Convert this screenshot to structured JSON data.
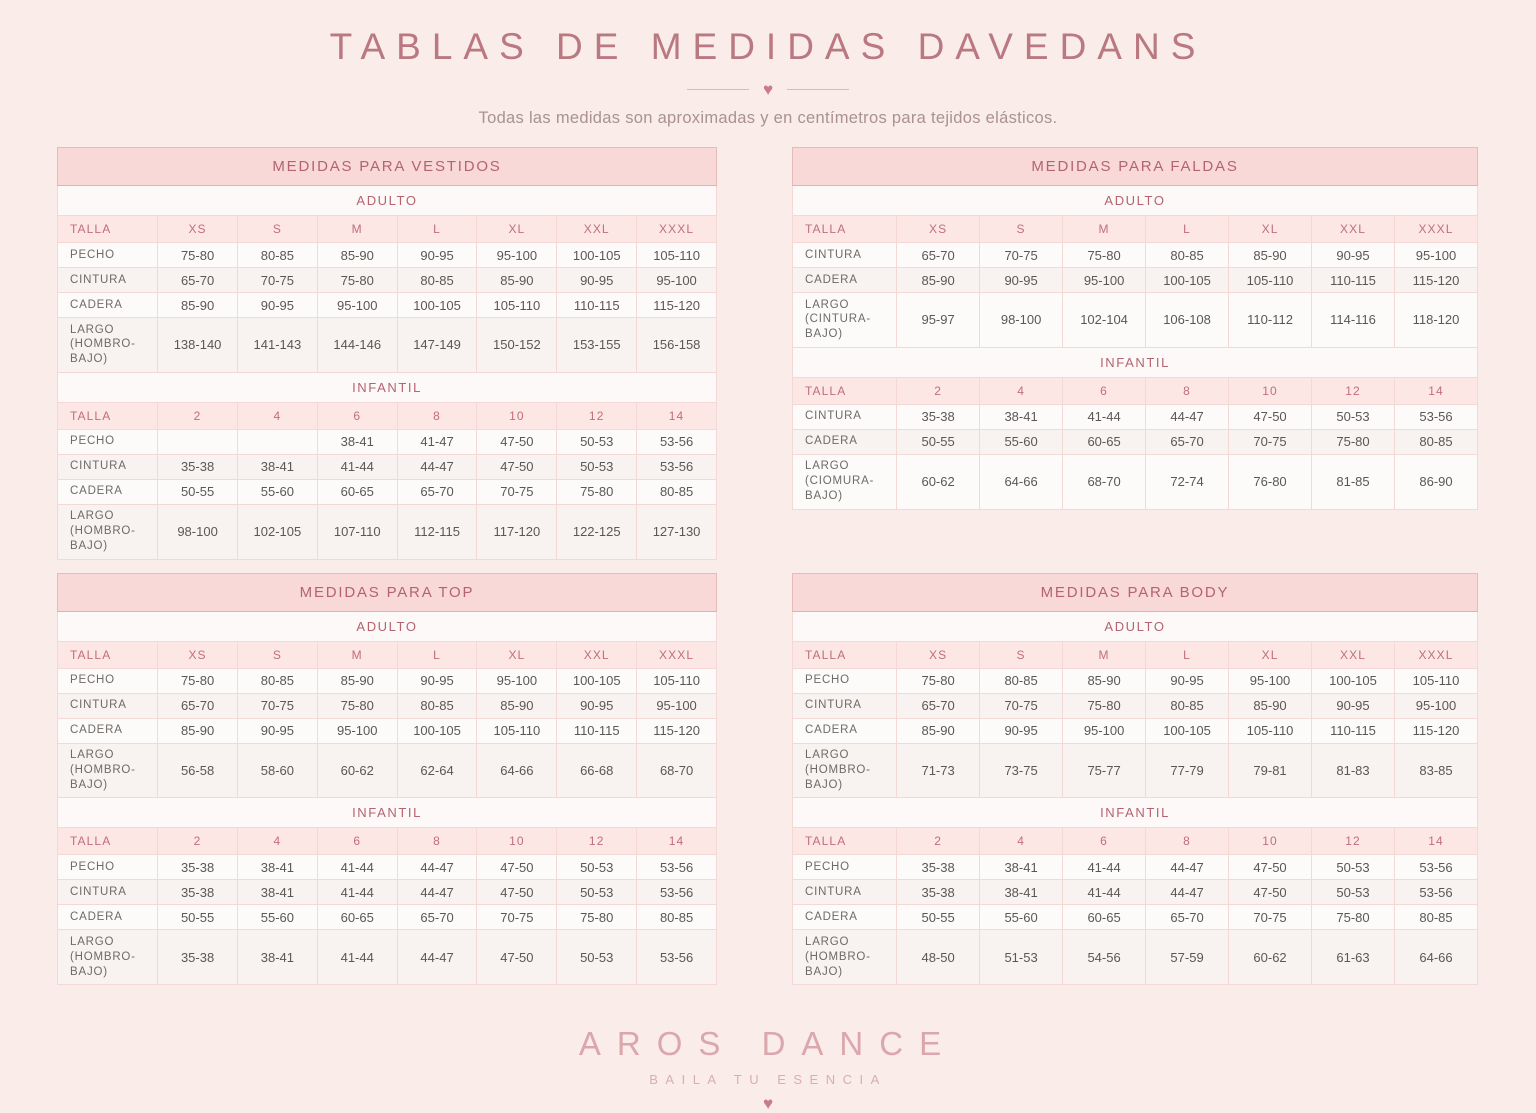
{
  "header": {
    "title": "TABLAS DE MEDIDAS DAVEDANS",
    "heart": "♥",
    "subtitle": "Todas las medidas son aproximadas y en centímetros para tejidos elásticos."
  },
  "colors": {
    "background": "#f9ece9",
    "band_pink": "#f8d9d7",
    "accent_rose": "#b4636f",
    "title_rose": "#ba7881",
    "footer_rose": "#dba7ac"
  },
  "tables": [
    {
      "id": "vestidos",
      "title": "MEDIDAS PARA VESTIDOS",
      "sections": [
        {
          "label": "ADULTO",
          "columns": [
            "TALLA",
            "XS",
            "S",
            "M",
            "L",
            "XL",
            "XXL",
            "XXXL"
          ],
          "rows": [
            {
              "label": "PECHO",
              "values": [
                "75-80",
                "80-85",
                "85-90",
                "90-95",
                "95-100",
                "100-105",
                "105-110"
              ]
            },
            {
              "label": "CINTURA",
              "values": [
                "65-70",
                "70-75",
                "75-80",
                "80-85",
                "85-90",
                "90-95",
                "95-100"
              ]
            },
            {
              "label": "CADERA",
              "values": [
                "85-90",
                "90-95",
                "95-100",
                "100-105",
                "105-110",
                "110-115",
                "115-120"
              ]
            },
            {
              "label": "LARGO (HOMBRO-BAJO)",
              "values": [
                "138-140",
                "141-143",
                "144-146",
                "147-149",
                "150-152",
                "153-155",
                "156-158"
              ]
            }
          ]
        },
        {
          "label": "INFANTIL",
          "columns": [
            "TALLA",
            "2",
            "4",
            "6",
            "8",
            "10",
            "12",
            "14"
          ],
          "rows": [
            {
              "label": "PECHO",
              "values": [
                "",
                "",
                "38-41",
                "41-47",
                "47-50",
                "50-53",
                "53-56"
              ]
            },
            {
              "label": "CINTURA",
              "values": [
                "35-38",
                "38-41",
                "41-44",
                "44-47",
                "47-50",
                "50-53",
                "53-56"
              ]
            },
            {
              "label": "CADERA",
              "values": [
                "50-55",
                "55-60",
                "60-65",
                "65-70",
                "70-75",
                "75-80",
                "80-85"
              ]
            },
            {
              "label": "LARGO (HOMBRO-BAJO)",
              "values": [
                "98-100",
                "102-105",
                "107-110",
                "112-115",
                "117-120",
                "122-125",
                "127-130"
              ]
            }
          ]
        }
      ]
    },
    {
      "id": "faldas",
      "title": "MEDIDAS PARA FALDAS",
      "sections": [
        {
          "label": "ADULTO",
          "columns": [
            "TALLA",
            "XS",
            "S",
            "M",
            "L",
            "XL",
            "XXL",
            "XXXL"
          ],
          "rows": [
            {
              "label": "CINTURA",
              "values": [
                "65-70",
                "70-75",
                "75-80",
                "80-85",
                "85-90",
                "90-95",
                "95-100"
              ]
            },
            {
              "label": "CADERA",
              "values": [
                "85-90",
                "90-95",
                "95-100",
                "100-105",
                "105-110",
                "110-115",
                "115-120"
              ]
            },
            {
              "label": "LARGO (CINTURA-BAJO)",
              "values": [
                "95-97",
                "98-100",
                "102-104",
                "106-108",
                "110-112",
                "114-116",
                "118-120"
              ]
            }
          ]
        },
        {
          "label": "INFANTIL",
          "columns": [
            "TALLA",
            "2",
            "4",
            "6",
            "8",
            "10",
            "12",
            "14"
          ],
          "rows": [
            {
              "label": "CINTURA",
              "values": [
                "35-38",
                "38-41",
                "41-44",
                "44-47",
                "47-50",
                "50-53",
                "53-56"
              ]
            },
            {
              "label": "CADERA",
              "values": [
                "50-55",
                "55-60",
                "60-65",
                "65-70",
                "70-75",
                "75-80",
                "80-85"
              ]
            },
            {
              "label": "LARGO (CIOMURA-BAJO)",
              "values": [
                "60-62",
                "64-66",
                "68-70",
                "72-74",
                "76-80",
                "81-85",
                "86-90"
              ]
            }
          ]
        }
      ]
    },
    {
      "id": "top",
      "title": "MEDIDAS PARA TOP",
      "sections": [
        {
          "label": "ADULTO",
          "columns": [
            "TALLA",
            "XS",
            "S",
            "M",
            "L",
            "XL",
            "XXL",
            "XXXL"
          ],
          "rows": [
            {
              "label": "PECHO",
              "values": [
                "75-80",
                "80-85",
                "85-90",
                "90-95",
                "95-100",
                "100-105",
                "105-110"
              ]
            },
            {
              "label": "CINTURA",
              "values": [
                "65-70",
                "70-75",
                "75-80",
                "80-85",
                "85-90",
                "90-95",
                "95-100"
              ]
            },
            {
              "label": "CADERA",
              "values": [
                "85-90",
                "90-95",
                "95-100",
                "100-105",
                "105-110",
                "110-115",
                "115-120"
              ]
            },
            {
              "label": "LARGO (HOMBRO-BAJO)",
              "values": [
                "56-58",
                "58-60",
                "60-62",
                "62-64",
                "64-66",
                "66-68",
                "68-70"
              ]
            }
          ]
        },
        {
          "label": "INFANTIL",
          "columns": [
            "TALLA",
            "2",
            "4",
            "6",
            "8",
            "10",
            "12",
            "14"
          ],
          "rows": [
            {
              "label": "PECHO",
              "values": [
                "35-38",
                "38-41",
                "41-44",
                "44-47",
                "47-50",
                "50-53",
                "53-56"
              ]
            },
            {
              "label": "CINTURA",
              "values": [
                "35-38",
                "38-41",
                "41-44",
                "44-47",
                "47-50",
                "50-53",
                "53-56"
              ]
            },
            {
              "label": "CADERA",
              "values": [
                "50-55",
                "55-60",
                "60-65",
                "65-70",
                "70-75",
                "75-80",
                "80-85"
              ]
            },
            {
              "label": "LARGO (HOMBRO-BAJO)",
              "values": [
                "35-38",
                "38-41",
                "41-44",
                "44-47",
                "47-50",
                "50-53",
                "53-56"
              ]
            }
          ]
        }
      ]
    },
    {
      "id": "body",
      "title": "MEDIDAS PARA BODY",
      "sections": [
        {
          "label": "ADULTO",
          "columns": [
            "TALLA",
            "XS",
            "S",
            "M",
            "L",
            "XL",
            "XXL",
            "XXXL"
          ],
          "rows": [
            {
              "label": "PECHO",
              "values": [
                "75-80",
                "80-85",
                "85-90",
                "90-95",
                "95-100",
                "100-105",
                "105-110"
              ]
            },
            {
              "label": "CINTURA",
              "values": [
                "65-70",
                "70-75",
                "75-80",
                "80-85",
                "85-90",
                "90-95",
                "95-100"
              ]
            },
            {
              "label": "CADERA",
              "values": [
                "85-90",
                "90-95",
                "95-100",
                "100-105",
                "105-110",
                "110-115",
                "115-120"
              ]
            },
            {
              "label": "LARGO (HOMBRO-BAJO)",
              "values": [
                "71-73",
                "73-75",
                "75-77",
                "77-79",
                "79-81",
                "81-83",
                "83-85"
              ]
            }
          ]
        },
        {
          "label": "INFANTIL",
          "columns": [
            "TALLA",
            "2",
            "4",
            "6",
            "8",
            "10",
            "12",
            "14"
          ],
          "rows": [
            {
              "label": "PECHO",
              "values": [
                "35-38",
                "38-41",
                "41-44",
                "44-47",
                "47-50",
                "50-53",
                "53-56"
              ]
            },
            {
              "label": "CINTURA",
              "values": [
                "35-38",
                "38-41",
                "41-44",
                "44-47",
                "47-50",
                "50-53",
                "53-56"
              ]
            },
            {
              "label": "CADERA",
              "values": [
                "50-55",
                "55-60",
                "60-65",
                "65-70",
                "70-75",
                "75-80",
                "80-85"
              ]
            },
            {
              "label": "LARGO (HOMBRO-BAJO)",
              "values": [
                "48-50",
                "51-53",
                "54-56",
                "57-59",
                "60-62",
                "61-63",
                "64-66"
              ]
            }
          ]
        }
      ]
    }
  ],
  "footer": {
    "brand": "AROS DANCE",
    "tagline": "BAILA TU ESENCIA",
    "heart": "♥"
  }
}
